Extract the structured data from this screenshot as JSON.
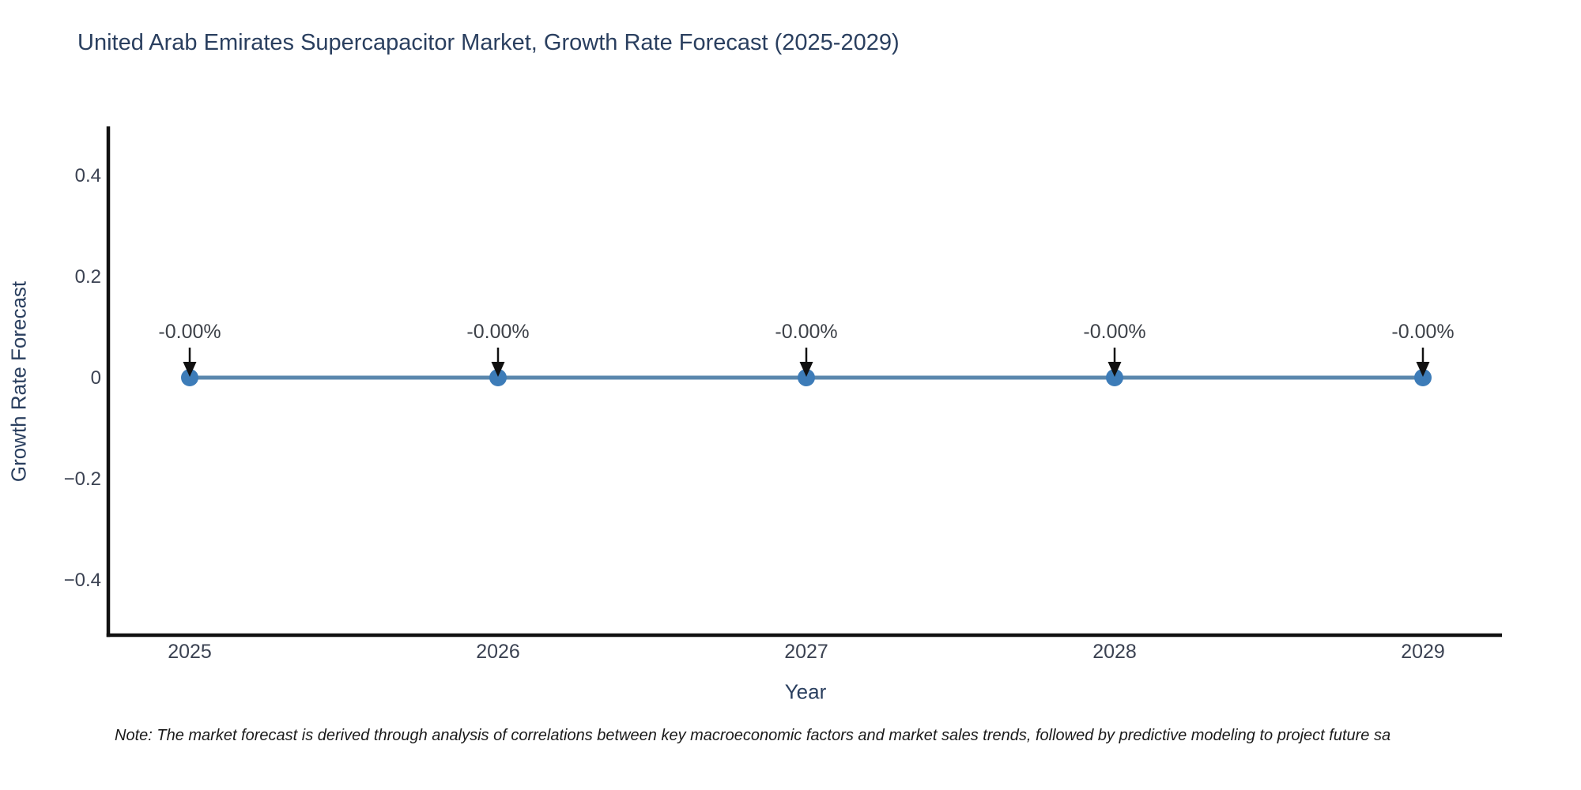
{
  "note": "Note: The market forecast is derived through analysis of correlations between key macroeconomic factors and market sales trends, followed by predictive modeling to project future sa",
  "chart_data": {
    "type": "line",
    "title": "United Arab Emirates Supercapacitor Market, Growth Rate Forecast (2025-2029)",
    "xlabel": "Year",
    "ylabel": "Growth Rate Forecast",
    "categories": [
      "2025",
      "2026",
      "2027",
      "2028",
      "2029"
    ],
    "series": [
      {
        "name": "Growth Rate Forecast",
        "values": [
          0,
          0,
          0,
          0,
          0
        ],
        "point_labels": [
          "-0.00%",
          "-0.00%",
          "-0.00%",
          "-0.00%",
          "-0.00%"
        ]
      }
    ],
    "yticks": [
      {
        "value": 0.4,
        "label": "0.4"
      },
      {
        "value": 0.2,
        "label": "0.2"
      },
      {
        "value": 0,
        "label": "0"
      },
      {
        "value": -0.2,
        "label": "−0.2"
      },
      {
        "value": -0.4,
        "label": "−0.4"
      }
    ],
    "ylim": [
      -0.51,
      0.5
    ],
    "grid": false,
    "legend": "none",
    "annotation_style": "down-arrow",
    "colors": {
      "line": "#5a87ad",
      "marker": "#3d7cb8",
      "axis": "#111111",
      "title": "#2a3f5f",
      "tick_label": "#3b4252",
      "annotation_text": "#3d4148",
      "arrow": "#111111",
      "background": "#ffffff"
    }
  }
}
